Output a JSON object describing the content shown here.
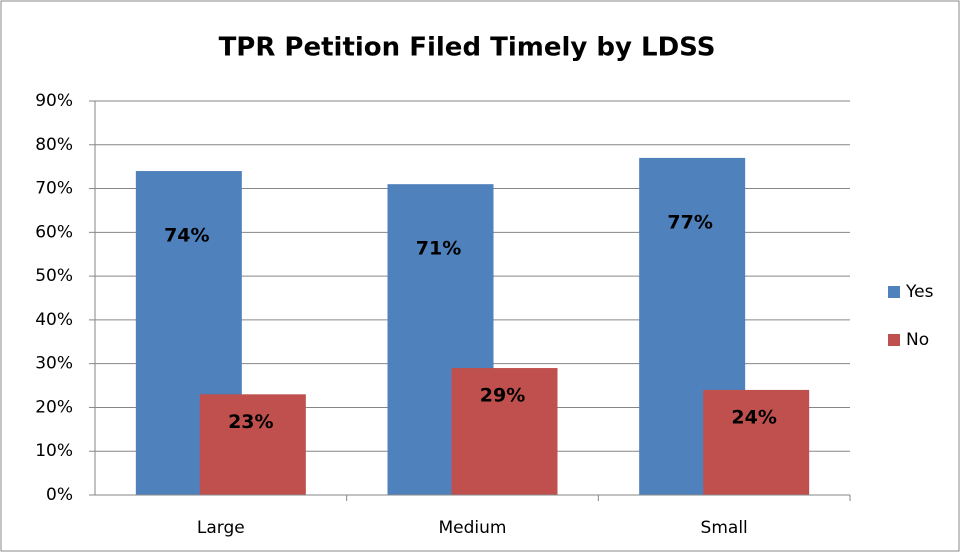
{
  "chart_data": {
    "type": "bar",
    "title": "TPR Petition Filed Timely by LDSS",
    "categories": [
      "Large",
      "Medium",
      "Small"
    ],
    "series": [
      {
        "name": "Yes",
        "color": "#4f81bd",
        "values": [
          74,
          71,
          77
        ],
        "value_labels": [
          "74%",
          "71%",
          "77%"
        ]
      },
      {
        "name": "No",
        "color": "#c0504d",
        "values": [
          23,
          29,
          24
        ],
        "value_labels": [
          "23%",
          "29%",
          "24%"
        ]
      }
    ],
    "ylim": [
      0,
      90
    ],
    "yticks": [
      {
        "value": 0,
        "label": "0%"
      },
      {
        "value": 10,
        "label": "10%"
      },
      {
        "value": 20,
        "label": "20%"
      },
      {
        "value": 30,
        "label": "30%"
      },
      {
        "value": 40,
        "label": "40%"
      },
      {
        "value": 50,
        "label": "50%"
      },
      {
        "value": 60,
        "label": "60%"
      },
      {
        "value": 70,
        "label": "70%"
      },
      {
        "value": 80,
        "label": "80%"
      },
      {
        "value": 90,
        "label": "90%"
      }
    ],
    "grid": true,
    "legend": "right"
  }
}
